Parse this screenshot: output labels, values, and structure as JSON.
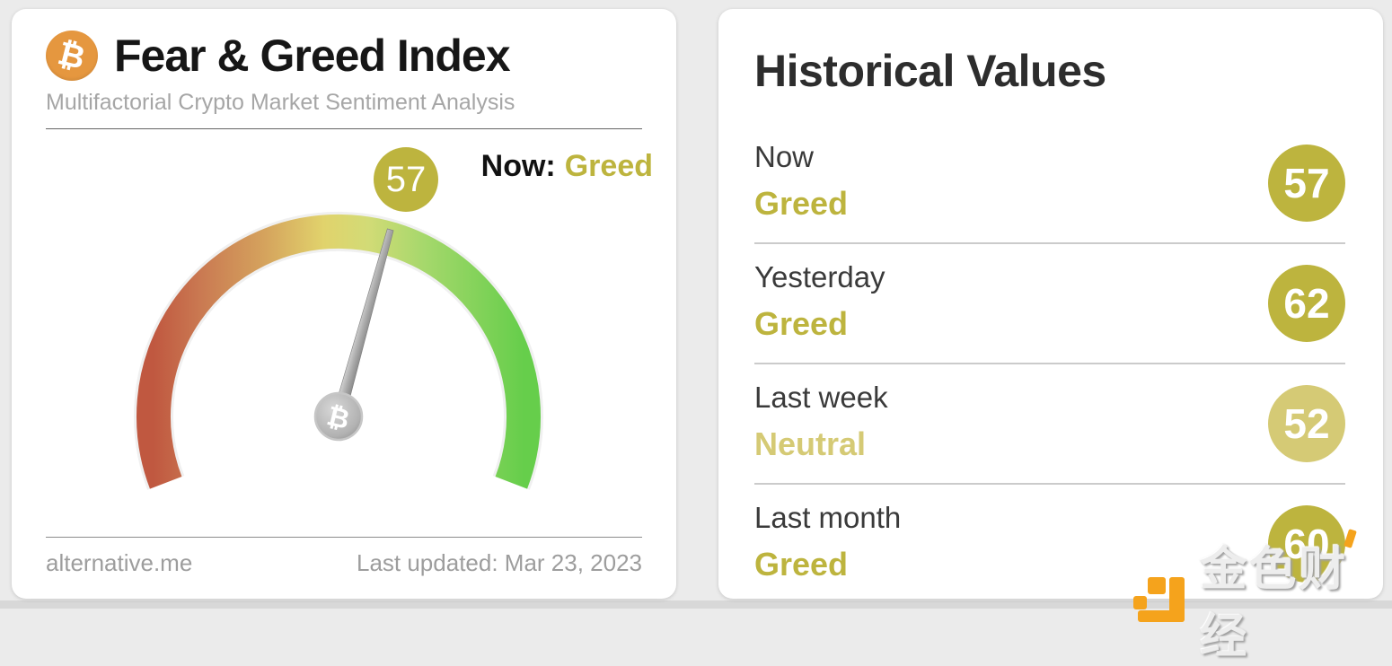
{
  "colors": {
    "greed": "#bdb43e",
    "neutral": "#d5ca75",
    "gauge_red": "#c05840",
    "gauge_orange": "#d5a35d",
    "gauge_yellow": "#e1d36c",
    "gauge_green": "#66ce4b",
    "bitcoin_orange": "#e5973f",
    "logo_orange": "#f5a31c"
  },
  "icons": {
    "bitcoin_glyph": "₿"
  },
  "left_card": {
    "title": "Fear & Greed Index",
    "subtitle": "Multifactorial Crypto Market Sentiment Analysis",
    "now_label": "Now:",
    "now_sentiment": "Greed",
    "gauge_value": "57",
    "footer_source": "alternative.me",
    "footer_updated": "Last updated: Mar 23, 2023"
  },
  "right_card": {
    "title": "Historical Values",
    "rows": [
      {
        "label": "Now",
        "sentiment": "Greed",
        "value": "57",
        "tone": "greed"
      },
      {
        "label": "Yesterday",
        "sentiment": "Greed",
        "value": "62",
        "tone": "greed"
      },
      {
        "label": "Last week",
        "sentiment": "Neutral",
        "value": "52",
        "tone": "neutral"
      },
      {
        "label": "Last month",
        "sentiment": "Greed",
        "value": "60",
        "tone": "greed"
      }
    ]
  },
  "watermark": {
    "text": "金色财经"
  },
  "chart_data": {
    "type": "gauge",
    "title": "Fear & Greed Index",
    "subtitle": "Multifactorial Crypto Market Sentiment Analysis",
    "value": 57,
    "min": 0,
    "max": 100,
    "classification": "Greed",
    "arc_span_degrees": 222,
    "scale": "red (fear, low values) through yellow to green (greed, high values)",
    "last_updated": "Mar 23, 2023",
    "source": "alternative.me",
    "historical": [
      {
        "period": "Now",
        "value": 57,
        "classification": "Greed"
      },
      {
        "period": "Yesterday",
        "value": 62,
        "classification": "Greed"
      },
      {
        "period": "Last week",
        "value": 52,
        "classification": "Neutral"
      },
      {
        "period": "Last month",
        "value": 60,
        "classification": "Greed"
      }
    ]
  }
}
